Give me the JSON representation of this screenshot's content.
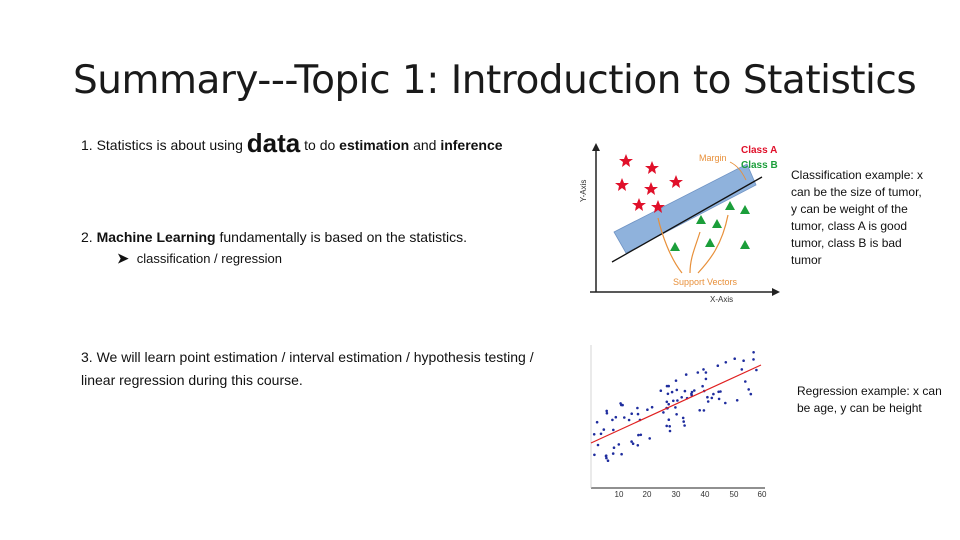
{
  "slide": {
    "title": "Summary---Topic 1: Introduction to Statistics",
    "item1": {
      "prefix": "1. Statistics is about using",
      "big_word": "data",
      "mid": "to do",
      "bold1": "estimation",
      "and": "and",
      "bold2": "inference"
    },
    "item2": {
      "prefix": "2.",
      "bold": "Machine Learning",
      "rest": "fundamentally is based on the statistics.",
      "bullet_icon": "arrow-bullet-icon",
      "sub": "classification / regression"
    },
    "item3": {
      "line1": "3. We will learn point estimation / interval estimation / hypothesis testing /",
      "line2": "linear regression during this course."
    },
    "classification_note": [
      "Classification example: x",
      "can be the size of tumor,",
      "y can be weight of the",
      "tumor, class A is good",
      "tumor, class B is  bad",
      "tumor"
    ],
    "regression_note": [
      "Regression example: x can",
      "be age, y can be height"
    ]
  },
  "svm_figure": {
    "y_axis": "Y-Axis",
    "x_axis": "X-Axis",
    "margin": "Margin",
    "class_a": "Class A",
    "class_b": "Class B",
    "support_vectors": "Support Vectors",
    "colors": {
      "class_a": "#e0102a",
      "class_b": "#1b9e3a",
      "band": "#8fb2dc",
      "annot": "#e8903a"
    }
  },
  "regression_figure": {
    "x_ticks": [
      "10",
      "20",
      "30",
      "40",
      "50",
      "60"
    ],
    "colors": {
      "points": "#1f2d9e",
      "line": "#e02020"
    }
  }
}
